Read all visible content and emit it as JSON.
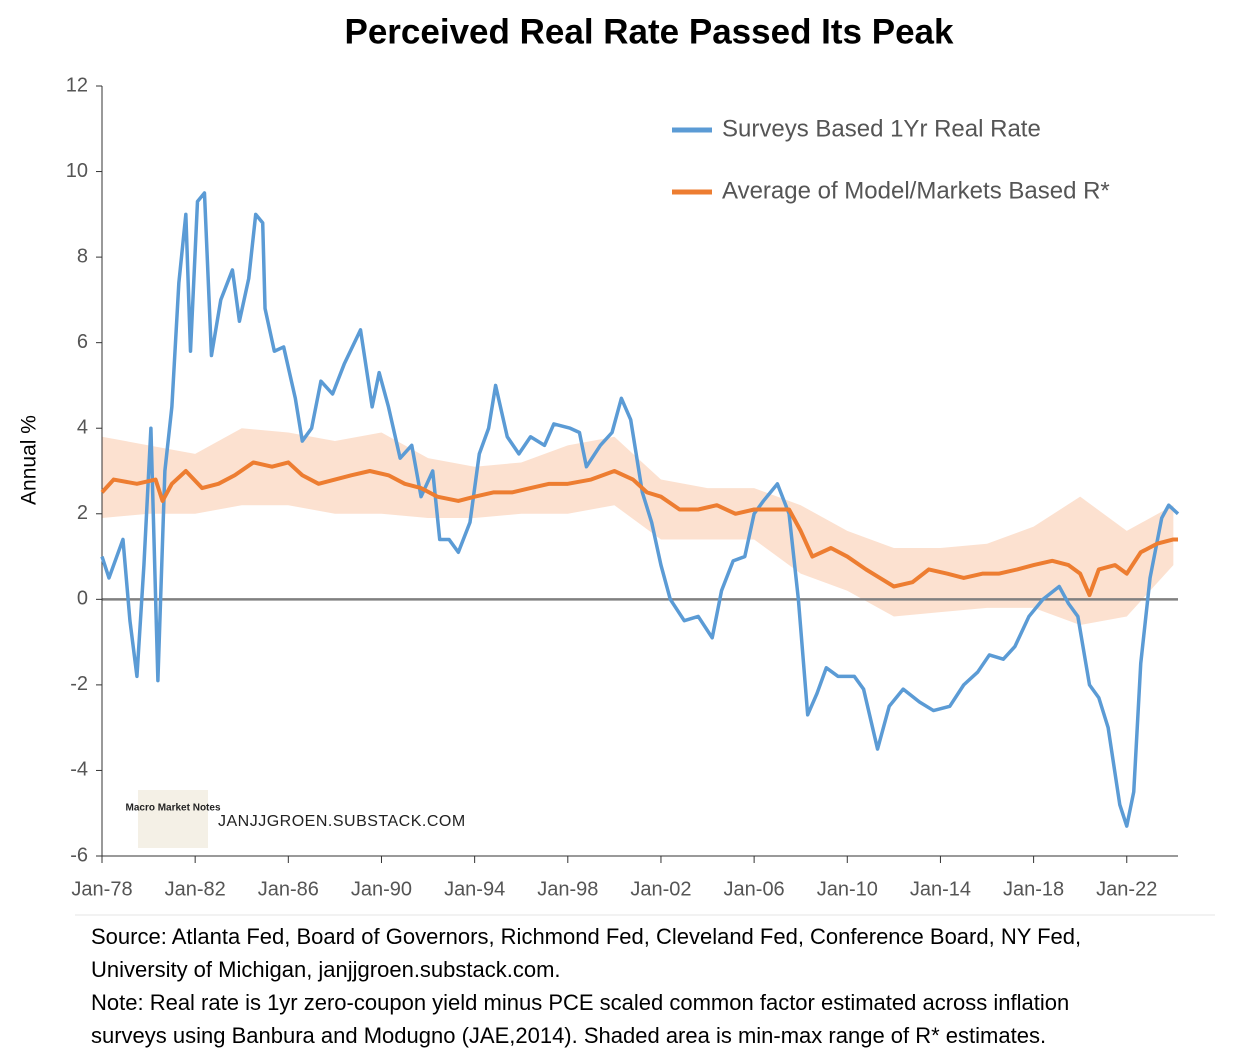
{
  "chart_data": {
    "type": "line",
    "title": "Perceived Real Rate Passed Its Peak",
    "ylabel": "Annual %",
    "xlim": [
      1978,
      2024.2
    ],
    "xticks": [
      {
        "value": 1978,
        "label": "Jan-78"
      },
      {
        "value": 1982,
        "label": "Jan-82"
      },
      {
        "value": 1986,
        "label": "Jan-86"
      },
      {
        "value": 1990,
        "label": "Jan-90"
      },
      {
        "value": 1994,
        "label": "Jan-94"
      },
      {
        "value": 1998,
        "label": "Jan-98"
      },
      {
        "value": 2002,
        "label": "Jan-02"
      },
      {
        "value": 2006,
        "label": "Jan-06"
      },
      {
        "value": 2010,
        "label": "Jan-10"
      },
      {
        "value": 2014,
        "label": "Jan-14"
      },
      {
        "value": 2018,
        "label": "Jan-18"
      },
      {
        "value": 2022,
        "label": "Jan-22"
      }
    ],
    "ylim": [
      -6,
      12
    ],
    "yticks": [
      -6,
      -4,
      -2,
      0,
      2,
      4,
      6,
      8,
      10,
      12
    ],
    "zero_line": true,
    "legend": "upper right",
    "series": [
      {
        "name": "Surveys Based 1Yr Real Rate",
        "color": "#5b9bd5",
        "x": [
          1978.0,
          1978.3,
          1978.9,
          1979.2,
          1979.5,
          1979.8,
          1980.1,
          1980.4,
          1980.7,
          1981.0,
          1981.3,
          1981.6,
          1981.8,
          1982.1,
          1982.4,
          1982.7,
          1983.1,
          1983.6,
          1983.9,
          1984.3,
          1984.6,
          1984.9,
          1985.0,
          1985.4,
          1985.8,
          1986.3,
          1986.6,
          1987.0,
          1987.4,
          1987.9,
          1988.4,
          1989.1,
          1989.6,
          1989.9,
          1990.3,
          1990.8,
          1991.3,
          1991.7,
          1992.2,
          1992.5,
          1992.9,
          1993.3,
          1993.8,
          1994.2,
          1994.6,
          1994.9,
          1995.4,
          1995.9,
          1996.4,
          1997.0,
          1997.4,
          1998.1,
          1998.5,
          1998.8,
          1999.4,
          1999.9,
          2000.3,
          2000.7,
          2001.2,
          2001.6,
          2002.0,
          2002.4,
          2003.0,
          2003.6,
          2004.2,
          2004.6,
          2005.1,
          2005.6,
          2006.0,
          2006.4,
          2007.0,
          2007.5,
          2007.9,
          2008.3,
          2008.7,
          2009.1,
          2009.6,
          2010.3,
          2010.7,
          2011.3,
          2011.8,
          2012.4,
          2013.1,
          2013.7,
          2014.4,
          2015.0,
          2015.6,
          2016.1,
          2016.7,
          2017.2,
          2017.8,
          2018.4,
          2019.1,
          2019.5,
          2019.9,
          2020.4,
          2020.8,
          2021.2,
          2021.7,
          2022.0,
          2022.3,
          2022.6,
          2023.0,
          2023.5,
          2023.8,
          2024.2
        ],
        "values": [
          1.0,
          0.5,
          1.4,
          -0.5,
          -1.8,
          0.8,
          4.0,
          -1.9,
          3.0,
          4.5,
          7.4,
          9.0,
          5.8,
          9.3,
          9.5,
          5.7,
          7.0,
          7.7,
          6.5,
          7.5,
          9.0,
          8.8,
          6.8,
          5.8,
          5.9,
          4.7,
          3.7,
          4.0,
          5.1,
          4.8,
          5.5,
          6.3,
          4.5,
          5.3,
          4.5,
          3.3,
          3.6,
          2.4,
          3.0,
          1.4,
          1.4,
          1.1,
          1.8,
          3.4,
          4.0,
          5.0,
          3.8,
          3.4,
          3.8,
          3.6,
          4.1,
          4.0,
          3.9,
          3.1,
          3.6,
          3.9,
          4.7,
          4.2,
          2.5,
          1.8,
          0.8,
          0.0,
          -0.5,
          -0.4,
          -0.9,
          0.2,
          0.9,
          1.0,
          2.0,
          2.3,
          2.7,
          2.0,
          0.0,
          -2.7,
          -2.2,
          -1.6,
          -1.8,
          -1.8,
          -2.1,
          -3.5,
          -2.5,
          -2.1,
          -2.4,
          -2.6,
          -2.5,
          -2.0,
          -1.7,
          -1.3,
          -1.4,
          -1.1,
          -0.4,
          0.0,
          0.3,
          -0.1,
          -0.4,
          -2.0,
          -2.3,
          -3.0,
          -4.8,
          -5.3,
          -4.5,
          -1.5,
          0.5,
          1.9,
          2.2,
          2.0
        ]
      },
      {
        "name": "Average of Model/Markets Based R*",
        "color": "#ed7d31",
        "x": [
          1978.0,
          1978.5,
          1979.5,
          1980.3,
          1980.6,
          1981.0,
          1981.6,
          1982.3,
          1983.0,
          1983.7,
          1984.5,
          1985.3,
          1986.0,
          1986.6,
          1987.3,
          1988.0,
          1988.7,
          1989.5,
          1990.3,
          1991.0,
          1991.7,
          1992.4,
          1993.3,
          1994.0,
          1994.8,
          1995.6,
          1996.4,
          1997.2,
          1998.0,
          1999.0,
          2000.0,
          2000.8,
          2001.4,
          2002.0,
          2002.8,
          2003.6,
          2004.4,
          2005.2,
          2006.0,
          2006.8,
          2007.5,
          2008.0,
          2008.5,
          2009.3,
          2010.0,
          2010.8,
          2011.4,
          2012.0,
          2012.8,
          2013.5,
          2014.3,
          2015.0,
          2015.8,
          2016.5,
          2017.3,
          2018.0,
          2018.8,
          2019.5,
          2020.0,
          2020.4,
          2020.8,
          2021.5,
          2022.0,
          2022.6,
          2023.3,
          2024.0,
          2024.2
        ],
        "values": [
          2.5,
          2.8,
          2.7,
          2.8,
          2.3,
          2.7,
          3.0,
          2.6,
          2.7,
          2.9,
          3.2,
          3.1,
          3.2,
          2.9,
          2.7,
          2.8,
          2.9,
          3.0,
          2.9,
          2.7,
          2.6,
          2.4,
          2.3,
          2.4,
          2.5,
          2.5,
          2.6,
          2.7,
          2.7,
          2.8,
          3.0,
          2.8,
          2.5,
          2.4,
          2.1,
          2.1,
          2.2,
          2.0,
          2.1,
          2.1,
          2.1,
          1.6,
          1.0,
          1.2,
          1.0,
          0.7,
          0.5,
          0.3,
          0.4,
          0.7,
          0.6,
          0.5,
          0.6,
          0.6,
          0.7,
          0.8,
          0.9,
          0.8,
          0.6,
          0.1,
          0.7,
          0.8,
          0.6,
          1.1,
          1.3,
          1.4,
          1.4
        ]
      }
    ],
    "band": {
      "color": "#fbd9c4",
      "x": [
        1978,
        1980,
        1982,
        1984,
        1986,
        1988,
        1990,
        1992,
        1994,
        1996,
        1998,
        2000,
        2002,
        2004,
        2006,
        2008,
        2010,
        2012,
        2014,
        2016,
        2018,
        2020,
        2022,
        2024
      ],
      "lower": [
        1.9,
        2.0,
        2.0,
        2.2,
        2.2,
        2.0,
        2.0,
        1.9,
        1.9,
        2.0,
        2.0,
        2.2,
        1.4,
        1.4,
        1.4,
        0.6,
        0.2,
        -0.4,
        -0.3,
        -0.2,
        -0.2,
        -0.6,
        -0.4,
        0.8
      ],
      "upper": [
        3.8,
        3.6,
        3.4,
        4.0,
        3.9,
        3.7,
        3.9,
        3.3,
        3.1,
        3.2,
        3.6,
        3.8,
        2.8,
        2.6,
        2.6,
        2.2,
        1.6,
        1.2,
        1.2,
        1.3,
        1.7,
        2.4,
        1.6,
        2.2
      ]
    },
    "watermark": {
      "logo": "Macro Market Notes",
      "text": "JANJJGROEN.SUBSTACK.COM"
    },
    "notes": [
      "Source: Atlanta Fed, Board of Governors, Richmond Fed, Cleveland Fed, Conference Board, NY Fed,",
      "University of Michigan, janjjgroen.substack.com.",
      "Note: Real rate is 1yr zero-coupon yield minus PCE scaled common factor estimated  across inflation",
      "surveys using Banbura and Modugno (JAE,2014). Shaded area is min-max range of R* estimates."
    ]
  }
}
